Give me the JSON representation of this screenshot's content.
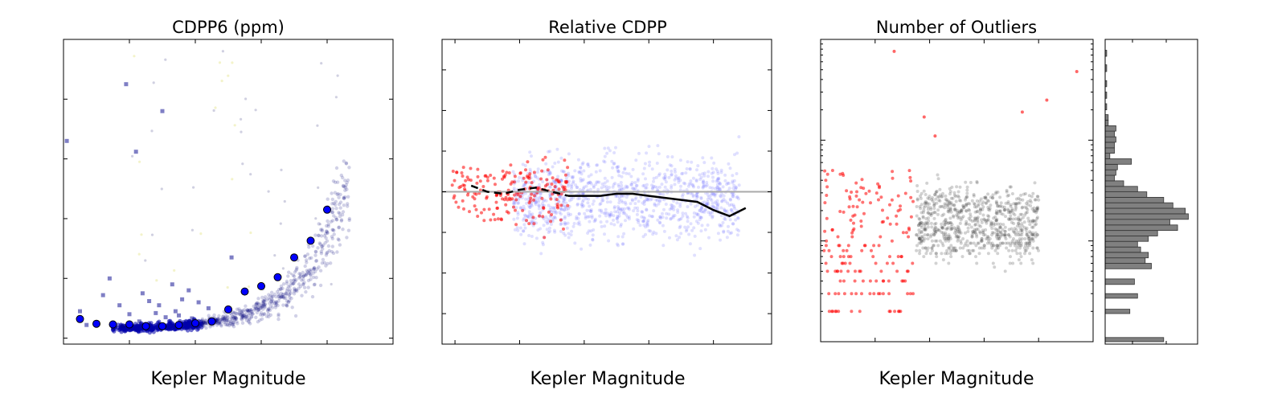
{
  "chart_data": [
    {
      "type": "scatter",
      "title": "CDPP6 (ppm)",
      "xlabel": "Kepler Magnitude",
      "ylabel": "",
      "xlim": [
        8,
        18
      ],
      "ylim": [
        -10,
        500
      ],
      "xticks": [
        "8",
        "10",
        "12",
        "14",
        "16",
        "18"
      ],
      "yticks": [
        "0",
        "100",
        "200",
        "300",
        "400",
        "500"
      ],
      "series": [
        {
          "role": "median",
          "color": "#0000ff",
          "x": [
            8.5,
            9.0,
            9.5,
            10.0,
            10.5,
            11.0,
            11.5,
            12.0,
            12.5,
            13.0,
            13.5,
            14.0,
            14.5,
            15.0,
            15.5,
            16.0
          ],
          "y": [
            32,
            24,
            23,
            23,
            20,
            20,
            22,
            25,
            28,
            48,
            78,
            87,
            102,
            135,
            163,
            215
          ]
        },
        {
          "role": "outliers",
          "color": "#00008b",
          "x": [
            8.1,
            8.5,
            9.2,
            9.4,
            9.9,
            10.2,
            10.4,
            10.6,
            10.9,
            11.0,
            11.3,
            11.4,
            11.6,
            11.8,
            10.0,
            10.3,
            11.1,
            9.8,
            12.1,
            12.4,
            13.1,
            12.6,
            11.9,
            9.7,
            10.8,
            11.5,
            8.7,
            9.5
          ],
          "y": [
            330,
            45,
            72,
            100,
            425,
            312,
            75,
            62,
            55,
            380,
            90,
            45,
            65,
            80,
            40,
            28,
            35,
            20,
            60,
            50,
            135,
            30,
            33,
            55,
            42,
            38,
            22,
            18
          ]
        }
      ]
    },
    {
      "type": "scatter",
      "title": "Relative CDPP",
      "xlabel": "Kepler Magnitude",
      "ylabel": "",
      "xlim": [
        7.6,
        17.8
      ],
      "ylim": [
        -0.075,
        0.075
      ],
      "xticks": [
        "8",
        "10",
        "12",
        "14",
        "16"
      ],
      "yticks": [
        "−0.06",
        "−0.04",
        "−0.02",
        "0.00",
        "0.02",
        "0.04",
        "0.06"
      ],
      "series": [
        {
          "role": "trend",
          "color": "#000000",
          "x": [
            8.5,
            9.0,
            9.5,
            10.0,
            10.5,
            11.0,
            11.5,
            12.0,
            12.5,
            13.0,
            13.5,
            14.0,
            14.5,
            15.0,
            15.5,
            16.0,
            16.5,
            17.0
          ],
          "y": [
            0.003,
            0.0,
            -0.001,
            0.001,
            0.002,
            0.0,
            -0.002,
            -0.002,
            -0.002,
            -0.001,
            -0.001,
            -0.002,
            -0.003,
            -0.004,
            -0.005,
            -0.009,
            -0.012,
            -0.008
          ]
        }
      ]
    },
    {
      "type": "scatter",
      "title": "Number of Outliers",
      "xlabel": "Kepler Magnitude",
      "ylabel": "",
      "xlim": [
        8,
        18
      ],
      "ylim": [
        1,
        1000
      ],
      "yscale": "log",
      "xticks": [
        "8",
        "10",
        "12",
        "14",
        "16",
        "18"
      ],
      "yticks": [
        "1",
        "10",
        "100",
        "1000"
      ]
    },
    {
      "type": "bar",
      "orientation": "horizontal",
      "color": "#808080",
      "yscale": "log",
      "ylim": [
        1,
        1000
      ],
      "bins": [
        [
          1.0,
          1.1,
          38
        ],
        [
          1.9,
          2.1,
          16
        ],
        [
          2.7,
          3.0,
          21
        ],
        [
          3.7,
          4.2,
          19
        ],
        [
          5.3,
          6.0,
          30
        ],
        [
          6.0,
          6.8,
          26
        ],
        [
          6.8,
          7.7,
          28
        ],
        [
          7.7,
          8.7,
          23
        ],
        [
          8.7,
          9.9,
          21
        ],
        [
          9.9,
          11.2,
          28
        ],
        [
          11.2,
          12.7,
          34
        ],
        [
          12.7,
          14.4,
          47
        ],
        [
          14.4,
          16.4,
          42
        ],
        [
          16.4,
          18.6,
          54
        ],
        [
          18.6,
          21.1,
          52
        ],
        [
          21.1,
          23.9,
          44
        ],
        [
          23.9,
          27.1,
          38
        ],
        [
          27.1,
          30.7,
          27
        ],
        [
          30.7,
          34.8,
          21
        ],
        [
          34.8,
          39.5,
          12
        ],
        [
          39.5,
          44.8,
          6
        ],
        [
          44.8,
          50.8,
          7
        ],
        [
          50.8,
          57.6,
          8
        ],
        [
          57.6,
          65.3,
          17
        ],
        [
          65.3,
          74.1,
          3
        ],
        [
          74.1,
          84.0,
          6
        ],
        [
          84.0,
          95.3,
          6
        ],
        [
          95.3,
          108,
          7
        ],
        [
          108,
          123,
          6
        ],
        [
          123,
          139,
          7
        ],
        [
          139,
          158,
          2
        ],
        [
          158,
          179,
          2
        ],
        [
          200,
          230,
          1
        ],
        [
          260,
          300,
          1
        ],
        [
          340,
          390,
          1
        ],
        [
          480,
          560,
          1
        ],
        [
          680,
          780,
          1
        ]
      ]
    }
  ]
}
